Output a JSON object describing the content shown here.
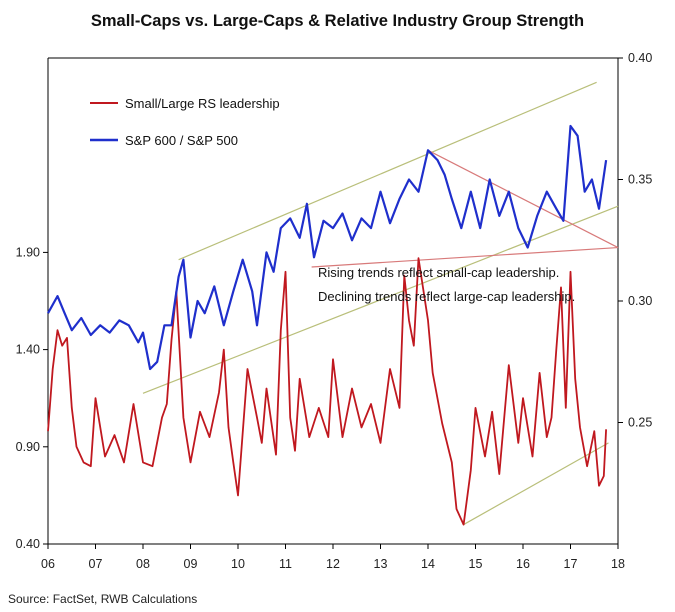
{
  "title": "Small-Caps vs. Large-Caps & Relative Industry Group Strength",
  "source": "Source: FactSet, RWB Calculations",
  "annotation": [
    "Rising trends reflect small-cap leadership.",
    "Declining trends reflect large-cap leadership."
  ],
  "colors": {
    "red_series": "#c0181f",
    "blue_series": "#1f2fcc",
    "channel": "#b9bf7a",
    "trend_red": "#d87a7a",
    "axis": "#000000"
  },
  "chart_data": {
    "type": "line",
    "x_ticks": [
      "06",
      "07",
      "08",
      "09",
      "10",
      "11",
      "12",
      "13",
      "14",
      "15",
      "16",
      "17",
      "18"
    ],
    "xlim": [
      2006,
      2018
    ],
    "left_axis": {
      "ticks": [
        "0.40",
        "0.90",
        "1.40",
        "1.90"
      ],
      "range": [
        0.4,
        2.9
      ]
    },
    "right_axis": {
      "ticks": [
        "0.25",
        "0.30",
        "0.35",
        "0.40"
      ],
      "range": [
        0.2,
        0.4
      ]
    },
    "series": [
      {
        "name": "Small/Large RS leadership",
        "axis": "left",
        "color": "#c0181f",
        "x": [
          2006.0,
          2006.1,
          2006.2,
          2006.3,
          2006.4,
          2006.5,
          2006.6,
          2006.75,
          2006.9,
          2007.0,
          2007.2,
          2007.4,
          2007.6,
          2007.8,
          2008.0,
          2008.2,
          2008.4,
          2008.5,
          2008.6,
          2008.7,
          2008.85,
          2009.0,
          2009.2,
          2009.4,
          2009.6,
          2009.7,
          2009.8,
          2009.9,
          2010.0,
          2010.2,
          2010.4,
          2010.5,
          2010.6,
          2010.8,
          2010.9,
          2011.0,
          2011.1,
          2011.2,
          2011.3,
          2011.5,
          2011.7,
          2011.9,
          2012.0,
          2012.2,
          2012.4,
          2012.6,
          2012.8,
          2013.0,
          2013.2,
          2013.4,
          2013.5,
          2013.6,
          2013.7,
          2013.8,
          2014.0,
          2014.1,
          2014.3,
          2014.5,
          2014.6,
          2014.75,
          2014.9,
          2015.0,
          2015.2,
          2015.35,
          2015.5,
          2015.7,
          2015.9,
          2016.0,
          2016.2,
          2016.35,
          2016.5,
          2016.6,
          2016.7,
          2016.8,
          2016.9,
          2017.0,
          2017.1,
          2017.2,
          2017.35,
          2017.5,
          2017.6,
          2017.7,
          2017.75
        ],
        "y": [
          0.98,
          1.3,
          1.5,
          1.42,
          1.46,
          1.1,
          0.9,
          0.82,
          0.8,
          1.15,
          0.85,
          0.96,
          0.82,
          1.12,
          0.82,
          0.8,
          1.05,
          1.12,
          1.45,
          1.7,
          1.05,
          0.82,
          1.08,
          0.95,
          1.18,
          1.4,
          1.0,
          0.82,
          0.65,
          1.3,
          1.05,
          0.92,
          1.2,
          0.86,
          1.5,
          1.8,
          1.05,
          0.88,
          1.25,
          0.95,
          1.1,
          0.95,
          1.35,
          0.95,
          1.2,
          1.0,
          1.12,
          0.92,
          1.3,
          1.1,
          1.78,
          1.55,
          1.42,
          1.87,
          1.55,
          1.28,
          1.02,
          0.82,
          0.58,
          0.5,
          0.78,
          1.1,
          0.85,
          1.08,
          0.76,
          1.32,
          0.92,
          1.15,
          0.85,
          1.28,
          0.95,
          1.05,
          1.4,
          1.72,
          1.1,
          1.8,
          1.25,
          1.0,
          0.8,
          0.98,
          0.7,
          0.75,
          0.99
        ]
      },
      {
        "name": "S&P 600 / S&P 500",
        "axis": "right",
        "color": "#1f2fcc",
        "x": [
          2006.0,
          2006.2,
          2006.35,
          2006.5,
          2006.7,
          2006.9,
          2007.1,
          2007.3,
          2007.5,
          2007.7,
          2007.9,
          2008.0,
          2008.15,
          2008.3,
          2008.45,
          2008.6,
          2008.75,
          2008.85,
          2009.0,
          2009.15,
          2009.3,
          2009.5,
          2009.7,
          2009.9,
          2010.1,
          2010.3,
          2010.4,
          2010.6,
          2010.75,
          2010.9,
          2011.1,
          2011.3,
          2011.45,
          2011.6,
          2011.8,
          2012.0,
          2012.2,
          2012.4,
          2012.6,
          2012.8,
          2013.0,
          2013.2,
          2013.4,
          2013.6,
          2013.8,
          2014.0,
          2014.2,
          2014.35,
          2014.5,
          2014.7,
          2014.9,
          2015.1,
          2015.3,
          2015.5,
          2015.7,
          2015.9,
          2016.1,
          2016.3,
          2016.5,
          2016.7,
          2016.85,
          2017.0,
          2017.15,
          2017.3,
          2017.45,
          2017.6,
          2017.75
        ],
        "y": [
          0.295,
          0.302,
          0.295,
          0.288,
          0.293,
          0.286,
          0.29,
          0.287,
          0.292,
          0.29,
          0.283,
          0.287,
          0.272,
          0.275,
          0.29,
          0.29,
          0.31,
          0.317,
          0.285,
          0.3,
          0.295,
          0.306,
          0.29,
          0.304,
          0.317,
          0.304,
          0.29,
          0.32,
          0.312,
          0.33,
          0.334,
          0.326,
          0.34,
          0.318,
          0.333,
          0.33,
          0.336,
          0.325,
          0.334,
          0.33,
          0.345,
          0.332,
          0.342,
          0.35,
          0.345,
          0.362,
          0.358,
          0.352,
          0.342,
          0.33,
          0.345,
          0.33,
          0.35,
          0.335,
          0.345,
          0.33,
          0.322,
          0.335,
          0.345,
          0.338,
          0.333,
          0.372,
          0.368,
          0.345,
          0.35,
          0.338,
          0.358
        ]
      }
    ],
    "trendlines": [
      {
        "type": "channel",
        "axis": "right",
        "color": "#b9bf7a",
        "x": [
          2008.75,
          2017.55
        ],
        "y": [
          0.317,
          0.39
        ]
      },
      {
        "type": "channel",
        "axis": "right",
        "color": "#b9bf7a",
        "x": [
          2008.0,
          2018.0
        ],
        "y": [
          0.262,
          0.339
        ]
      },
      {
        "type": "resistance",
        "axis": "right",
        "color": "#d87a7a",
        "x": [
          2014.0,
          2018.0
        ],
        "y": [
          0.362,
          0.322
        ]
      },
      {
        "type": "support",
        "axis": "right",
        "color": "#d87a7a",
        "x": [
          2011.55,
          2018.0
        ],
        "y": [
          0.314,
          0.322
        ]
      },
      {
        "type": "support",
        "axis": "left",
        "color": "#b9bf7a",
        "x": [
          2014.75,
          2017.8
        ],
        "y": [
          0.5,
          0.92
        ]
      }
    ]
  }
}
